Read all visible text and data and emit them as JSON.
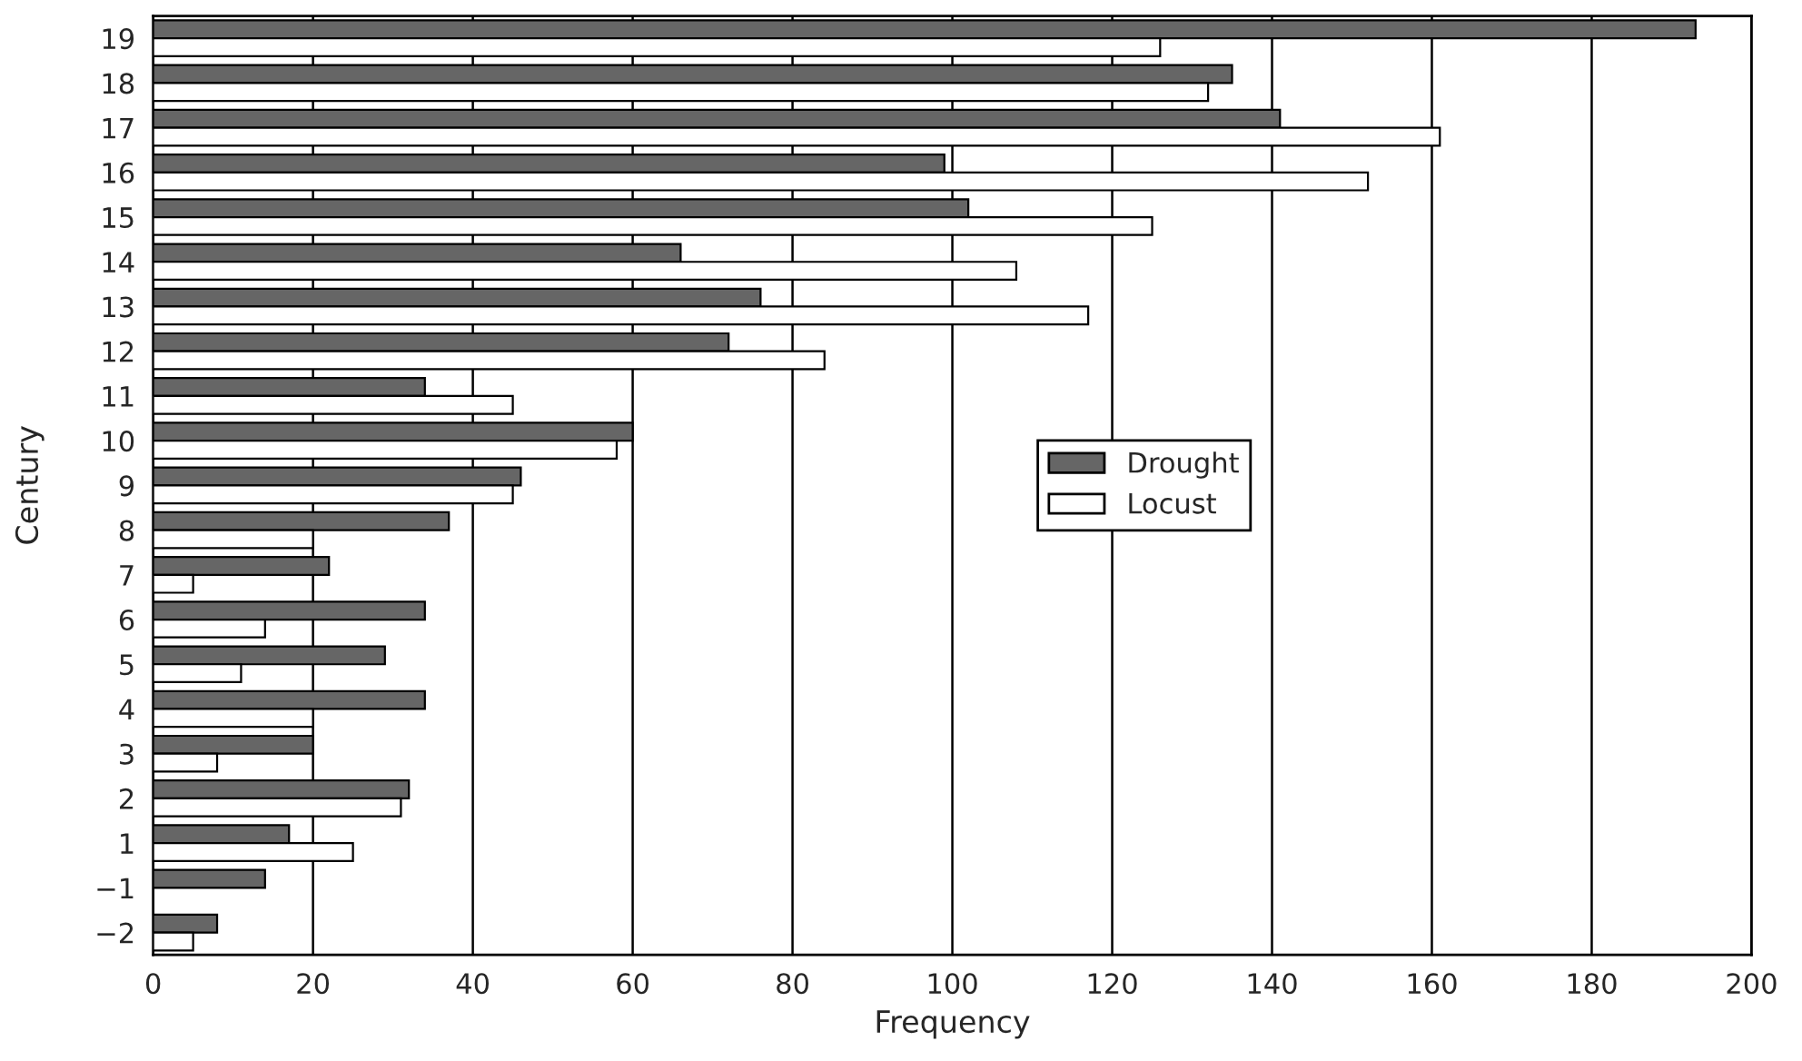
{
  "chart_data": {
    "type": "bar",
    "orientation": "horizontal",
    "xlabel": "Frequency",
    "ylabel": "Century",
    "categories": [
      "19",
      "18",
      "17",
      "16",
      "15",
      "14",
      "13",
      "12",
      "11",
      "10",
      "9",
      "8",
      "7",
      "6",
      "5",
      "4",
      "3",
      "2",
      "1",
      "−1",
      "−2"
    ],
    "series": [
      {
        "name": "Drought",
        "color": "#666666",
        "values": [
          193,
          135,
          141,
          99,
          102,
          66,
          76,
          72,
          34,
          60,
          46,
          37,
          22,
          34,
          29,
          34,
          20,
          32,
          17,
          14,
          8
        ]
      },
      {
        "name": "Locust",
        "color": "#ffffff",
        "values": [
          126,
          132,
          161,
          152,
          125,
          108,
          117,
          84,
          45,
          58,
          45,
          20,
          5,
          14,
          11,
          20,
          8,
          31,
          25,
          null,
          5
        ]
      }
    ],
    "xlim": [
      0,
      200
    ],
    "xticks": [
      0,
      20,
      40,
      60,
      80,
      100,
      120,
      140,
      160,
      180,
      200
    ],
    "grid": "x",
    "legend": "center"
  }
}
